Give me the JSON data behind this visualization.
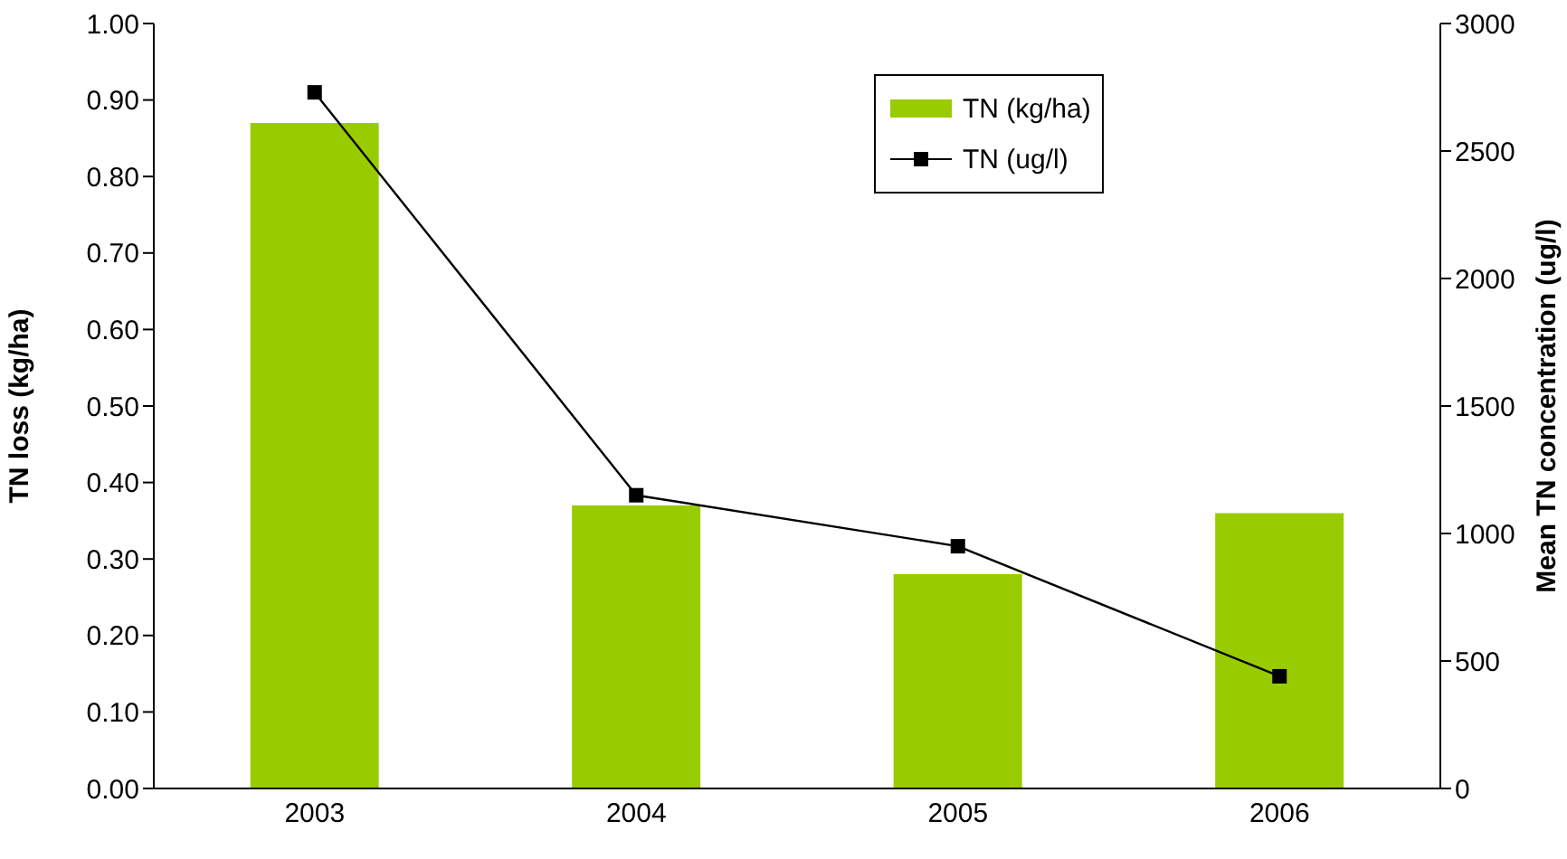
{
  "chart_data": {
    "type": "bar",
    "categories": [
      "2003",
      "2004",
      "2005",
      "2006"
    ],
    "series": [
      {
        "name": "TN (kg/ha)",
        "type": "bar",
        "color": "#99cc00",
        "values": [
          0.87,
          0.37,
          0.28,
          0.36
        ]
      },
      {
        "name": "TN (ug/l)",
        "type": "line",
        "axis": "y2",
        "color": "#000000",
        "marker": "square",
        "values": [
          2730,
          1150,
          950,
          440
        ]
      }
    ],
    "ylabel": "TN loss (kg/ha)",
    "y2label": "Mean TN concentration (ug/l)",
    "ylim": [
      0,
      1
    ],
    "yticks": [
      {
        "value": 0,
        "label": "0.00"
      },
      {
        "value": 0.1,
        "label": "0.10"
      },
      {
        "value": 0.2,
        "label": "0.20"
      },
      {
        "value": 0.3,
        "label": "0.30"
      },
      {
        "value": 0.4,
        "label": "0.40"
      },
      {
        "value": 0.5,
        "label": "0.50"
      },
      {
        "value": 0.6,
        "label": "0.60"
      },
      {
        "value": 0.7,
        "label": "0.70"
      },
      {
        "value": 0.8,
        "label": "0.80"
      },
      {
        "value": 0.9,
        "label": "0.90"
      },
      {
        "value": 1,
        "label": "1.00"
      }
    ],
    "y2lim": [
      0,
      3000
    ],
    "y2ticks": [
      0,
      500,
      1000,
      1500,
      2000,
      2500,
      3000
    ],
    "grid": false,
    "legend": "top"
  }
}
